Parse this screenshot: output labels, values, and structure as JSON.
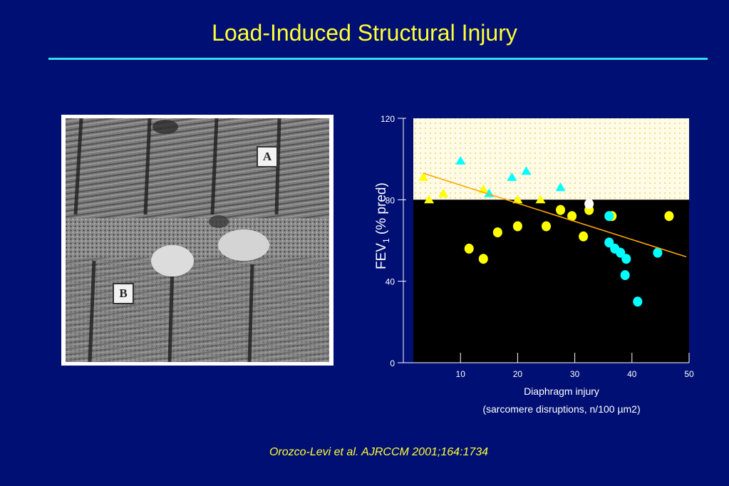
{
  "slide": {
    "title": "Load-Induced Structural Injury",
    "citation": "Orozco-Levi et al. AJRCCM 2001;164:1734"
  },
  "micrograph": {
    "label_a": "A",
    "label_b": "B"
  },
  "chart_data": {
    "type": "scatter",
    "title": "",
    "ylabel_main": "FEV",
    "ylabel_sub": "1",
    "ylabel_rest": " (% pred)",
    "xlabel_line1": "Diaphragm injury",
    "xlabel_line2": "(sarcomere disruptions, n/100 µm2)",
    "xlim": [
      0,
      50
    ],
    "ylim": [
      0,
      120
    ],
    "xticks": [
      10,
      20,
      30,
      40,
      50
    ],
    "yticks": [
      0,
      40,
      80,
      120
    ],
    "reference_line_y": 80,
    "regions": {
      "above_80": "#fffbe6",
      "below_80": "#000000"
    },
    "series": [
      {
        "marker": "triangle",
        "color": "#ffff00",
        "points": [
          [
            3.5,
            91
          ],
          [
            4.5,
            80
          ],
          [
            7,
            83
          ],
          [
            14,
            85
          ],
          [
            20,
            80
          ],
          [
            24,
            80
          ]
        ]
      },
      {
        "marker": "triangle",
        "color": "#00ffff",
        "points": [
          [
            10,
            99
          ],
          [
            15,
            83
          ],
          [
            19,
            91
          ],
          [
            21.5,
            94
          ],
          [
            27.5,
            86
          ]
        ]
      },
      {
        "marker": "circle",
        "color": "#ffff00",
        "points": [
          [
            11.5,
            56
          ],
          [
            14,
            51
          ],
          [
            16.5,
            64
          ],
          [
            20,
            67
          ],
          [
            25,
            67
          ],
          [
            27.5,
            75
          ],
          [
            29.5,
            72
          ],
          [
            31.5,
            62
          ],
          [
            32.5,
            75
          ],
          [
            36.5,
            72
          ],
          [
            46.5,
            72
          ]
        ]
      },
      {
        "marker": "circle",
        "color": "#00ffff",
        "points": [
          [
            36,
            72
          ],
          [
            36,
            59
          ],
          [
            37,
            56
          ],
          [
            38,
            54
          ],
          [
            39,
            51
          ],
          [
            38.8,
            43
          ],
          [
            41,
            30
          ],
          [
            44.5,
            54
          ]
        ]
      },
      {
        "marker": "circle",
        "color": "#ffffff",
        "points": [
          [
            32.5,
            78
          ]
        ]
      }
    ],
    "trendline": {
      "color": "#ffa500",
      "from": [
        3.5,
        93
      ],
      "to": [
        49.5,
        52
      ]
    }
  }
}
